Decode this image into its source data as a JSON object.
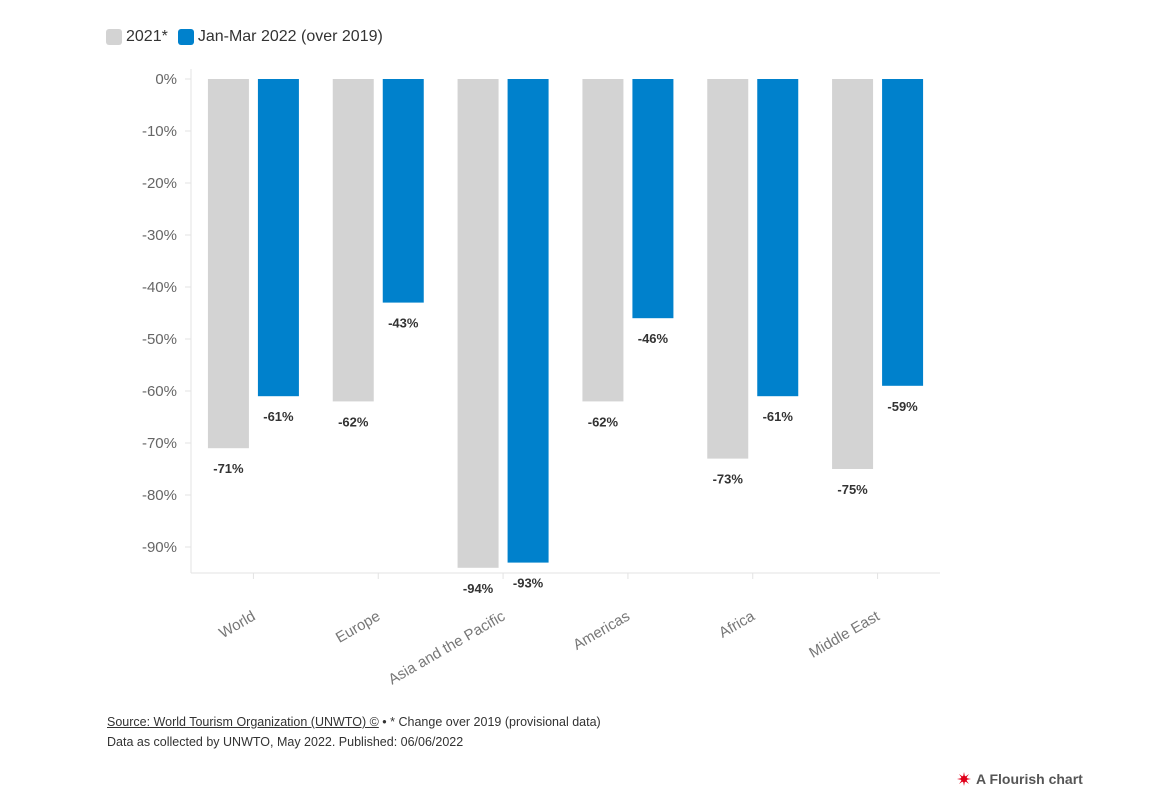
{
  "legend": [
    {
      "label": "2021*",
      "color": "#d3d3d3"
    },
    {
      "label": "Jan-Mar 2022 (over 2019)",
      "color": "#0081cc"
    }
  ],
  "chart_data": {
    "type": "bar",
    "categories": [
      "World",
      "Europe",
      "Asia and the Pacific",
      "Americas",
      "Africa",
      "Middle East"
    ],
    "series": [
      {
        "name": "2021*",
        "values": [
          -71,
          -62,
          -94,
          -62,
          -73,
          -75
        ],
        "color": "#d3d3d3"
      },
      {
        "name": "Jan-Mar 2022 (over 2019)",
        "values": [
          -61,
          -43,
          -93,
          -46,
          -61,
          -59
        ],
        "color": "#0081cc"
      }
    ],
    "data_labels": [
      [
        "-71%",
        "-62%",
        "-94%",
        "-62%",
        "-73%",
        "-75%"
      ],
      [
        "-61%",
        "-43%",
        "-93%",
        "-46%",
        "-61%",
        "-59%"
      ]
    ],
    "y_ticks": [
      0,
      -10,
      -20,
      -30,
      -40,
      -50,
      -60,
      -70,
      -80,
      -90
    ],
    "y_tick_labels": [
      "0%",
      "-10%",
      "-20%",
      "-30%",
      "-40%",
      "-50%",
      "-60%",
      "-70%",
      "-80%",
      "-90%"
    ],
    "ylim": [
      -95,
      0
    ],
    "grid": false
  },
  "footer": {
    "source_link": "Source: World Tourism Organization (UNWTO) ©",
    "separator": "•",
    "note": "* Change over 2019 (provisional data)",
    "line2": "Data as collected by UNWTO, May 2022. Published: 06/06/2022"
  },
  "branding": {
    "label": "A Flourish chart",
    "icon": "flourish-logo-icon"
  }
}
